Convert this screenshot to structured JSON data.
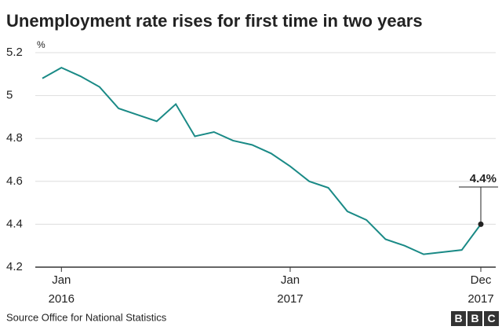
{
  "chart_data": {
    "type": "line",
    "title": "Unemployment rate rises for first time in two years",
    "y_unit": "%",
    "categories": [
      null,
      "Jan 2016",
      null,
      null,
      null,
      null,
      null,
      null,
      null,
      null,
      null,
      null,
      null,
      "Jan 2017",
      null,
      null,
      null,
      null,
      null,
      null,
      null,
      null,
      null,
      "Dec 2017"
    ],
    "series": [
      {
        "name": null,
        "color": "#1a8a86",
        "values": [
          5.08,
          5.13,
          5.09,
          5.04,
          4.94,
          4.91,
          4.88,
          4.96,
          4.81,
          4.83,
          4.79,
          4.77,
          4.73,
          4.67,
          4.6,
          4.57,
          4.46,
          4.42,
          4.33,
          4.3,
          4.26,
          4.27,
          4.28,
          4.4
        ],
        "value_labels": [
          null,
          null,
          null,
          null,
          null,
          null,
          null,
          null,
          null,
          null,
          null,
          null,
          null,
          null,
          null,
          null,
          null,
          null,
          null,
          null,
          null,
          null,
          null,
          "4.4%"
        ]
      }
    ],
    "ylim": [
      4.2,
      5.2
    ],
    "yticks": [
      4.2,
      4.4,
      4.6,
      4.8,
      5,
      5.2
    ],
    "grid": true,
    "source": "Source Office for National Statistics",
    "logo": [
      "B",
      "B",
      "C"
    ]
  }
}
